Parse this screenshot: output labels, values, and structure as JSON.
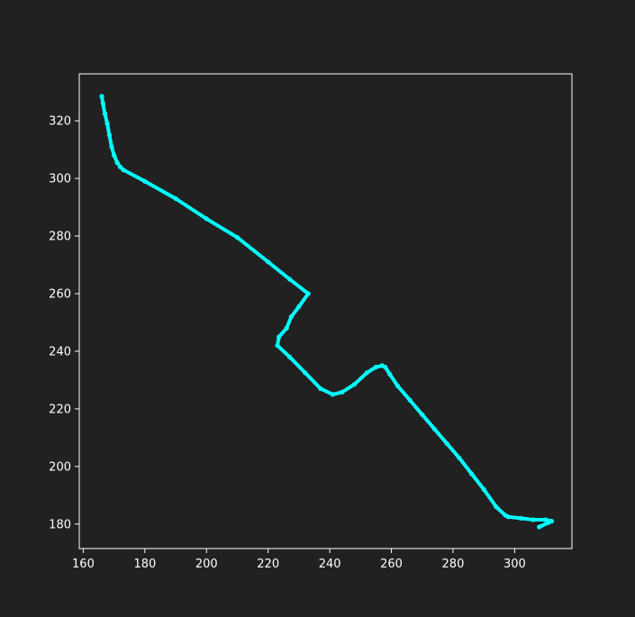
{
  "colors": {
    "background": "#212121",
    "axis": "#ffffff",
    "series": "#00ffff"
  },
  "chart_data": {
    "type": "scatter",
    "title": "",
    "xlabel": "",
    "ylabel": "",
    "xlim": [
      158.7,
      318.6
    ],
    "ylim": [
      171.5,
      336.3
    ],
    "xticks": [
      160,
      180,
      200,
      220,
      240,
      260,
      280,
      300
    ],
    "yticks": [
      180,
      200,
      220,
      240,
      260,
      280,
      300,
      320
    ],
    "xtick_labels": [
      "160",
      "180",
      "200",
      "220",
      "240",
      "260",
      "280",
      "300"
    ],
    "ytick_labels": [
      "180",
      "200",
      "220",
      "240",
      "260",
      "280",
      "300",
      "320"
    ],
    "grid": false,
    "legend": false,
    "series": [
      {
        "x": [
          166.0,
          166.4,
          167.0,
          167.8,
          168.5,
          169.2,
          170.0,
          171.0,
          172.0,
          173.0,
          180.0,
          190.0,
          200.0,
          210.0,
          220.0,
          227.0,
          233.0,
          230.0,
          227.5,
          226.0,
          223.5,
          223.0,
          227.0,
          232.0,
          237.0,
          241.0,
          244.0,
          248.0,
          252.0,
          255.0,
          257.0,
          258.0,
          259.5,
          262.0,
          266.0,
          270.0,
          274.0,
          278.0,
          282.0,
          286.0,
          290.0,
          294.0,
          297.0,
          298.0,
          302.0,
          306.0,
          310.0,
          312.0,
          311.0,
          308.0
        ],
        "y": [
          328.5,
          326.0,
          322.5,
          319.0,
          315.0,
          311.0,
          308.0,
          305.5,
          304.0,
          303.0,
          299.0,
          293.0,
          286.0,
          279.5,
          271.0,
          265.0,
          260.0,
          255.5,
          252.0,
          248.0,
          245.0,
          242.0,
          238.0,
          232.5,
          227.0,
          225.0,
          225.8,
          228.5,
          232.5,
          234.5,
          235.0,
          234.5,
          232.0,
          228.0,
          223.0,
          218.0,
          213.0,
          208.0,
          203.0,
          197.5,
          192.0,
          186.0,
          183.0,
          182.5,
          182.0,
          181.5,
          181.5,
          181.0,
          180.5,
          179.0
        ]
      }
    ]
  }
}
